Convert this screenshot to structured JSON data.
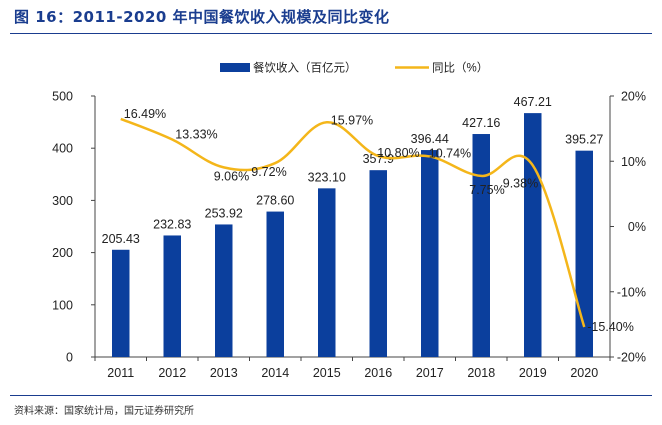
{
  "header": {
    "title": "图 16：2011-2020 年中国餐饮收入规模及同比变化"
  },
  "footer": {
    "source": "资料来源：国家统计局，国元证券研究所"
  },
  "colors": {
    "bar": "#0b3f9d",
    "line": "#f4b61a",
    "text": "#222222",
    "axis": "#444444"
  },
  "chart_data": {
    "type": "bar",
    "title": "2011-2020 年中国餐饮收入规模及同比变化",
    "categories": [
      "2011",
      "2012",
      "2013",
      "2014",
      "2015",
      "2016",
      "2017",
      "2018",
      "2019",
      "2020"
    ],
    "series": [
      {
        "name": "餐饮收入（百亿元）",
        "type": "bar",
        "axis": "left",
        "values": [
          205.43,
          232.83,
          253.92,
          278.6,
          323.1,
          357.9,
          396.44,
          427.16,
          467.21,
          395.27
        ],
        "labels": [
          "205.43",
          "232.83",
          "253.92",
          "278.60",
          "323.10",
          "357.9",
          "396.44",
          "427.16",
          "467.21",
          "395.27"
        ]
      },
      {
        "name": "同比（%）",
        "type": "line",
        "axis": "right",
        "values": [
          16.49,
          13.33,
          9.06,
          9.72,
          15.97,
          10.8,
          10.74,
          7.75,
          9.38,
          -15.4
        ],
        "labels": [
          "16.49%",
          "13.33%",
          "9.06%",
          "9.72%",
          "15.97%",
          "10.80%",
          "10.74%",
          "7.75%",
          "9.38%",
          "-15.40%"
        ]
      }
    ],
    "y_left": {
      "min": 0,
      "max": 500,
      "ticks": [
        "0",
        "100",
        "200",
        "300",
        "400",
        "500"
      ]
    },
    "y_right": {
      "min": -20,
      "max": 20,
      "ticks": [
        "-20%",
        "-10%",
        "0%",
        "10%",
        "20%"
      ]
    },
    "legend": {
      "position": "top"
    },
    "grid": false
  }
}
